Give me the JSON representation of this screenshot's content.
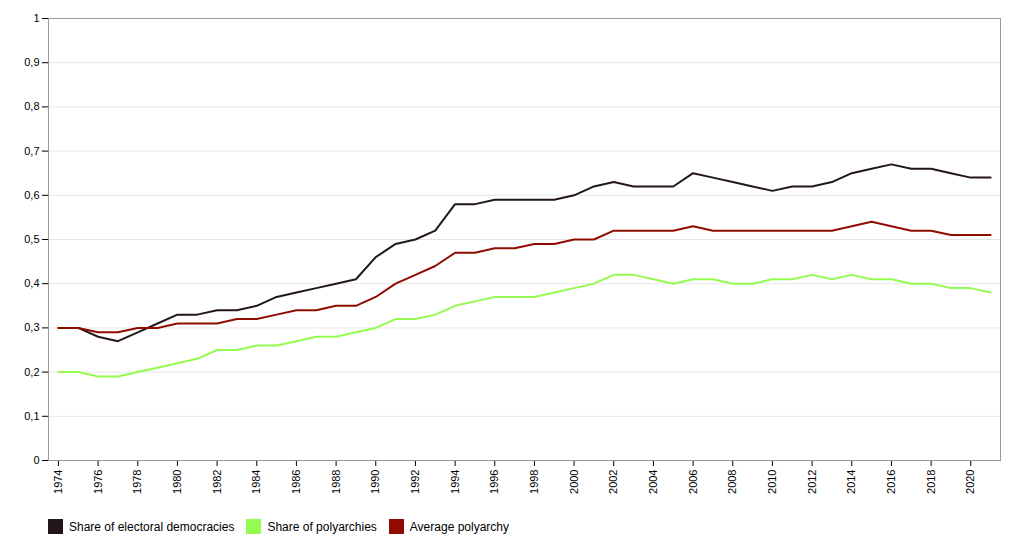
{
  "chart_data": {
    "type": "line",
    "x": [
      1974,
      1975,
      1976,
      1977,
      1978,
      1979,
      1980,
      1981,
      1982,
      1983,
      1984,
      1985,
      1986,
      1987,
      1988,
      1989,
      1990,
      1991,
      1992,
      1993,
      1994,
      1995,
      1996,
      1997,
      1998,
      1999,
      2000,
      2001,
      2002,
      2003,
      2004,
      2005,
      2006,
      2007,
      2008,
      2009,
      2010,
      2011,
      2012,
      2013,
      2014,
      2015,
      2016,
      2017,
      2018,
      2019,
      2020,
      2021
    ],
    "series": [
      {
        "name": "Share of electoral democracies",
        "values": [
          0.3,
          0.3,
          0.28,
          0.27,
          0.29,
          0.31,
          0.33,
          0.33,
          0.34,
          0.34,
          0.35,
          0.37,
          0.38,
          0.39,
          0.4,
          0.41,
          0.46,
          0.49,
          0.5,
          0.52,
          0.58,
          0.58,
          0.59,
          0.59,
          0.59,
          0.59,
          0.6,
          0.62,
          0.63,
          0.62,
          0.62,
          0.62,
          0.65,
          0.64,
          0.63,
          0.62,
          0.61,
          0.62,
          0.62,
          0.63,
          0.65,
          0.66,
          0.67,
          0.66,
          0.66,
          0.65,
          0.64,
          0.64
        ]
      },
      {
        "name": "Share of polyarchies",
        "values": [
          0.2,
          0.2,
          0.19,
          0.19,
          0.2,
          0.21,
          0.22,
          0.23,
          0.25,
          0.25,
          0.26,
          0.26,
          0.27,
          0.28,
          0.28,
          0.29,
          0.3,
          0.32,
          0.32,
          0.33,
          0.35,
          0.36,
          0.37,
          0.37,
          0.37,
          0.38,
          0.39,
          0.4,
          0.42,
          0.42,
          0.41,
          0.4,
          0.41,
          0.41,
          0.4,
          0.4,
          0.41,
          0.41,
          0.42,
          0.41,
          0.42,
          0.41,
          0.41,
          0.4,
          0.4,
          0.39,
          0.39,
          0.38
        ]
      },
      {
        "name": "Average polyarchy",
        "values": [
          0.3,
          0.3,
          0.29,
          0.29,
          0.3,
          0.3,
          0.31,
          0.31,
          0.31,
          0.32,
          0.32,
          0.33,
          0.34,
          0.34,
          0.35,
          0.35,
          0.37,
          0.4,
          0.42,
          0.44,
          0.47,
          0.47,
          0.48,
          0.48,
          0.49,
          0.49,
          0.5,
          0.5,
          0.52,
          0.52,
          0.52,
          0.52,
          0.53,
          0.52,
          0.52,
          0.52,
          0.52,
          0.52,
          0.52,
          0.52,
          0.53,
          0.54,
          0.53,
          0.52,
          0.52,
          0.51,
          0.51,
          0.51
        ]
      }
    ],
    "xlim": [
      1973.5,
      2021.5
    ],
    "xticks": [
      1974,
      1976,
      1978,
      1980,
      1982,
      1984,
      1986,
      1988,
      1990,
      1992,
      1994,
      1996,
      1998,
      2000,
      2002,
      2004,
      2006,
      2008,
      2010,
      2012,
      2014,
      2016,
      2018,
      2020
    ],
    "ylim": [
      0,
      1
    ],
    "yticks": [
      0,
      {
        "value": 0.1,
        "label": "0,1"
      },
      {
        "value": 0.2,
        "label": "0,2"
      },
      {
        "value": 0.3,
        "label": "0,3"
      },
      {
        "value": 0.4,
        "label": "0,4"
      },
      {
        "value": 0.5,
        "label": "0,5"
      },
      {
        "value": 0.6,
        "label": "0,6"
      },
      {
        "value": 0.7,
        "label": "0,7"
      },
      {
        "value": 0.8,
        "label": "0,8"
      },
      {
        "value": 0.9,
        "label": "0,9"
      },
      1
    ],
    "grid": true,
    "legend": "bottom"
  }
}
